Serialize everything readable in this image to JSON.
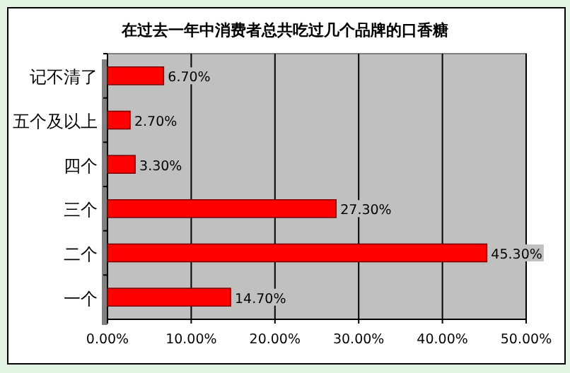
{
  "chart_data": {
    "type": "bar",
    "orientation": "horizontal",
    "title": "在过去一年中消费者总共吃过几个品牌的口香糖",
    "categories": [
      "记不清了",
      "五个及以上",
      "四个",
      "三个",
      "二个",
      "一个"
    ],
    "values": [
      6.7,
      2.7,
      3.3,
      27.3,
      45.3,
      14.7
    ],
    "value_labels": [
      "6.70%",
      "2.70%",
      "3.30%",
      "27.30%",
      "45.30%",
      "14.70%"
    ],
    "color": "#ff0000",
    "xlim": [
      0,
      50
    ],
    "xticks": [
      {
        "value": 0,
        "label": "0.00%"
      },
      {
        "value": 10,
        "label": "10.00%"
      },
      {
        "value": 20,
        "label": "20.00%"
      },
      {
        "value": 30,
        "label": "30.00%"
      },
      {
        "value": 40,
        "label": "40.00%"
      },
      {
        "value": 50,
        "label": "50.00%"
      }
    ],
    "grid": "x"
  }
}
